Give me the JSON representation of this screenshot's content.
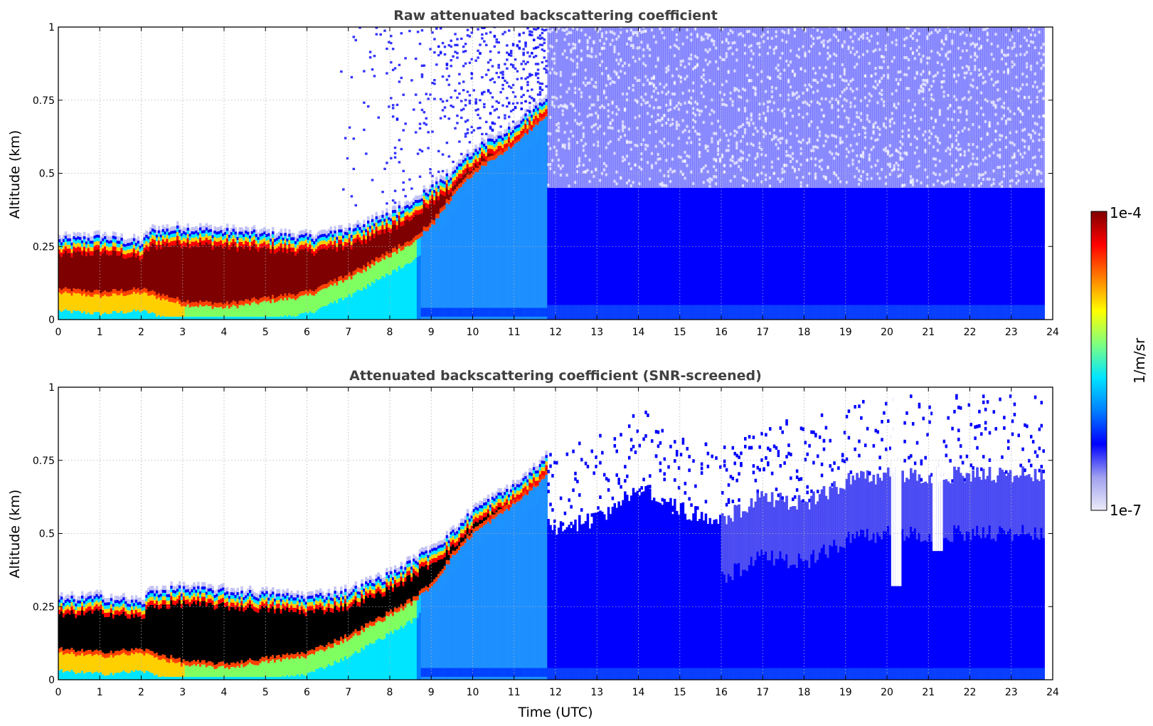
{
  "chart_data": [
    {
      "type": "heatmap",
      "title": "Raw attenuated backscattering coefficient",
      "xlabel": "",
      "ylabel": "Altitude (km)",
      "xlim": [
        0,
        24
      ],
      "ylim": [
        0,
        1
      ],
      "x_ticks": [
        "0",
        "1",
        "2",
        "3",
        "4",
        "5",
        "6",
        "7",
        "8",
        "9",
        "10",
        "11",
        "12",
        "13",
        "14",
        "15",
        "16",
        "17",
        "18",
        "19",
        "20",
        "21",
        "22",
        "23",
        "24"
      ],
      "y_ticks": [
        "0",
        "0.25",
        "0.5",
        "0.75",
        "1"
      ],
      "grid": true,
      "layer_top_km": [
        [
          0,
          0.27
        ],
        [
          1,
          0.28
        ],
        [
          2,
          0.26
        ],
        [
          2.2,
          0.3
        ],
        [
          3,
          0.31
        ],
        [
          4,
          0.3
        ],
        [
          5,
          0.29
        ],
        [
          6,
          0.28
        ],
        [
          7,
          0.3
        ],
        [
          8,
          0.36
        ],
        [
          8.5,
          0.4
        ],
        [
          9,
          0.45
        ],
        [
          9.5,
          0.5
        ],
        [
          10,
          0.58
        ],
        [
          10.5,
          0.62
        ],
        [
          11,
          0.66
        ],
        [
          11.5,
          0.72
        ],
        [
          11.8,
          0.76
        ]
      ],
      "layer_base_km": [
        [
          0,
          0.09
        ],
        [
          1,
          0.08
        ],
        [
          2,
          0.09
        ],
        [
          3,
          0.05
        ],
        [
          4,
          0.04
        ],
        [
          5,
          0.06
        ],
        [
          6,
          0.08
        ],
        [
          7,
          0.14
        ],
        [
          8,
          0.22
        ],
        [
          8.5,
          0.26
        ],
        [
          9,
          0.32
        ],
        [
          9.5,
          0.42
        ],
        [
          10,
          0.5
        ],
        [
          10.5,
          0.55
        ],
        [
          11,
          0.6
        ],
        [
          11.5,
          0.66
        ],
        [
          11.8,
          0.7
        ]
      ],
      "data_end_hour": 23.8,
      "colorscale": "jet-log",
      "screened": false
    },
    {
      "type": "heatmap",
      "title": "Attenuated backscattering coefficient (SNR-screened)",
      "xlabel": "Time (UTC)",
      "ylabel": "Altitude (km)",
      "xlim": [
        0,
        24
      ],
      "ylim": [
        0,
        1
      ],
      "x_ticks": [
        "0",
        "1",
        "2",
        "3",
        "4",
        "5",
        "6",
        "7",
        "8",
        "9",
        "10",
        "11",
        "12",
        "13",
        "14",
        "15",
        "16",
        "17",
        "18",
        "19",
        "20",
        "21",
        "22",
        "23",
        "24"
      ],
      "y_ticks": [
        "0",
        "0.25",
        "0.5",
        "0.75",
        "1"
      ],
      "grid": true,
      "signal_top_km": [
        [
          12,
          0.52
        ],
        [
          13,
          0.55
        ],
        [
          14,
          0.65
        ],
        [
          15,
          0.58
        ],
        [
          16,
          0.55
        ],
        [
          17,
          0.62
        ],
        [
          18,
          0.6
        ],
        [
          19,
          0.68
        ],
        [
          20,
          0.7
        ],
        [
          21,
          0.7
        ],
        [
          22,
          0.7
        ],
        [
          23,
          0.7
        ],
        [
          23.8,
          0.7
        ]
      ],
      "gaps_hour_bottom": [
        [
          20.2,
          0.32
        ],
        [
          21.2,
          0.44
        ]
      ],
      "data_end_hour": 23.8,
      "colorscale": "jet-log",
      "screened": true
    }
  ],
  "colorbar": {
    "max_label": "1e-4",
    "min_label": "1e-7",
    "unit_label": "1/m/sr",
    "colors": [
      "#ececf8",
      "#a0a0f0",
      "#0000ff",
      "#007fff",
      "#00e5ff",
      "#7fff7f",
      "#ffff00",
      "#ff7f00",
      "#ff0000",
      "#7f0000"
    ]
  }
}
